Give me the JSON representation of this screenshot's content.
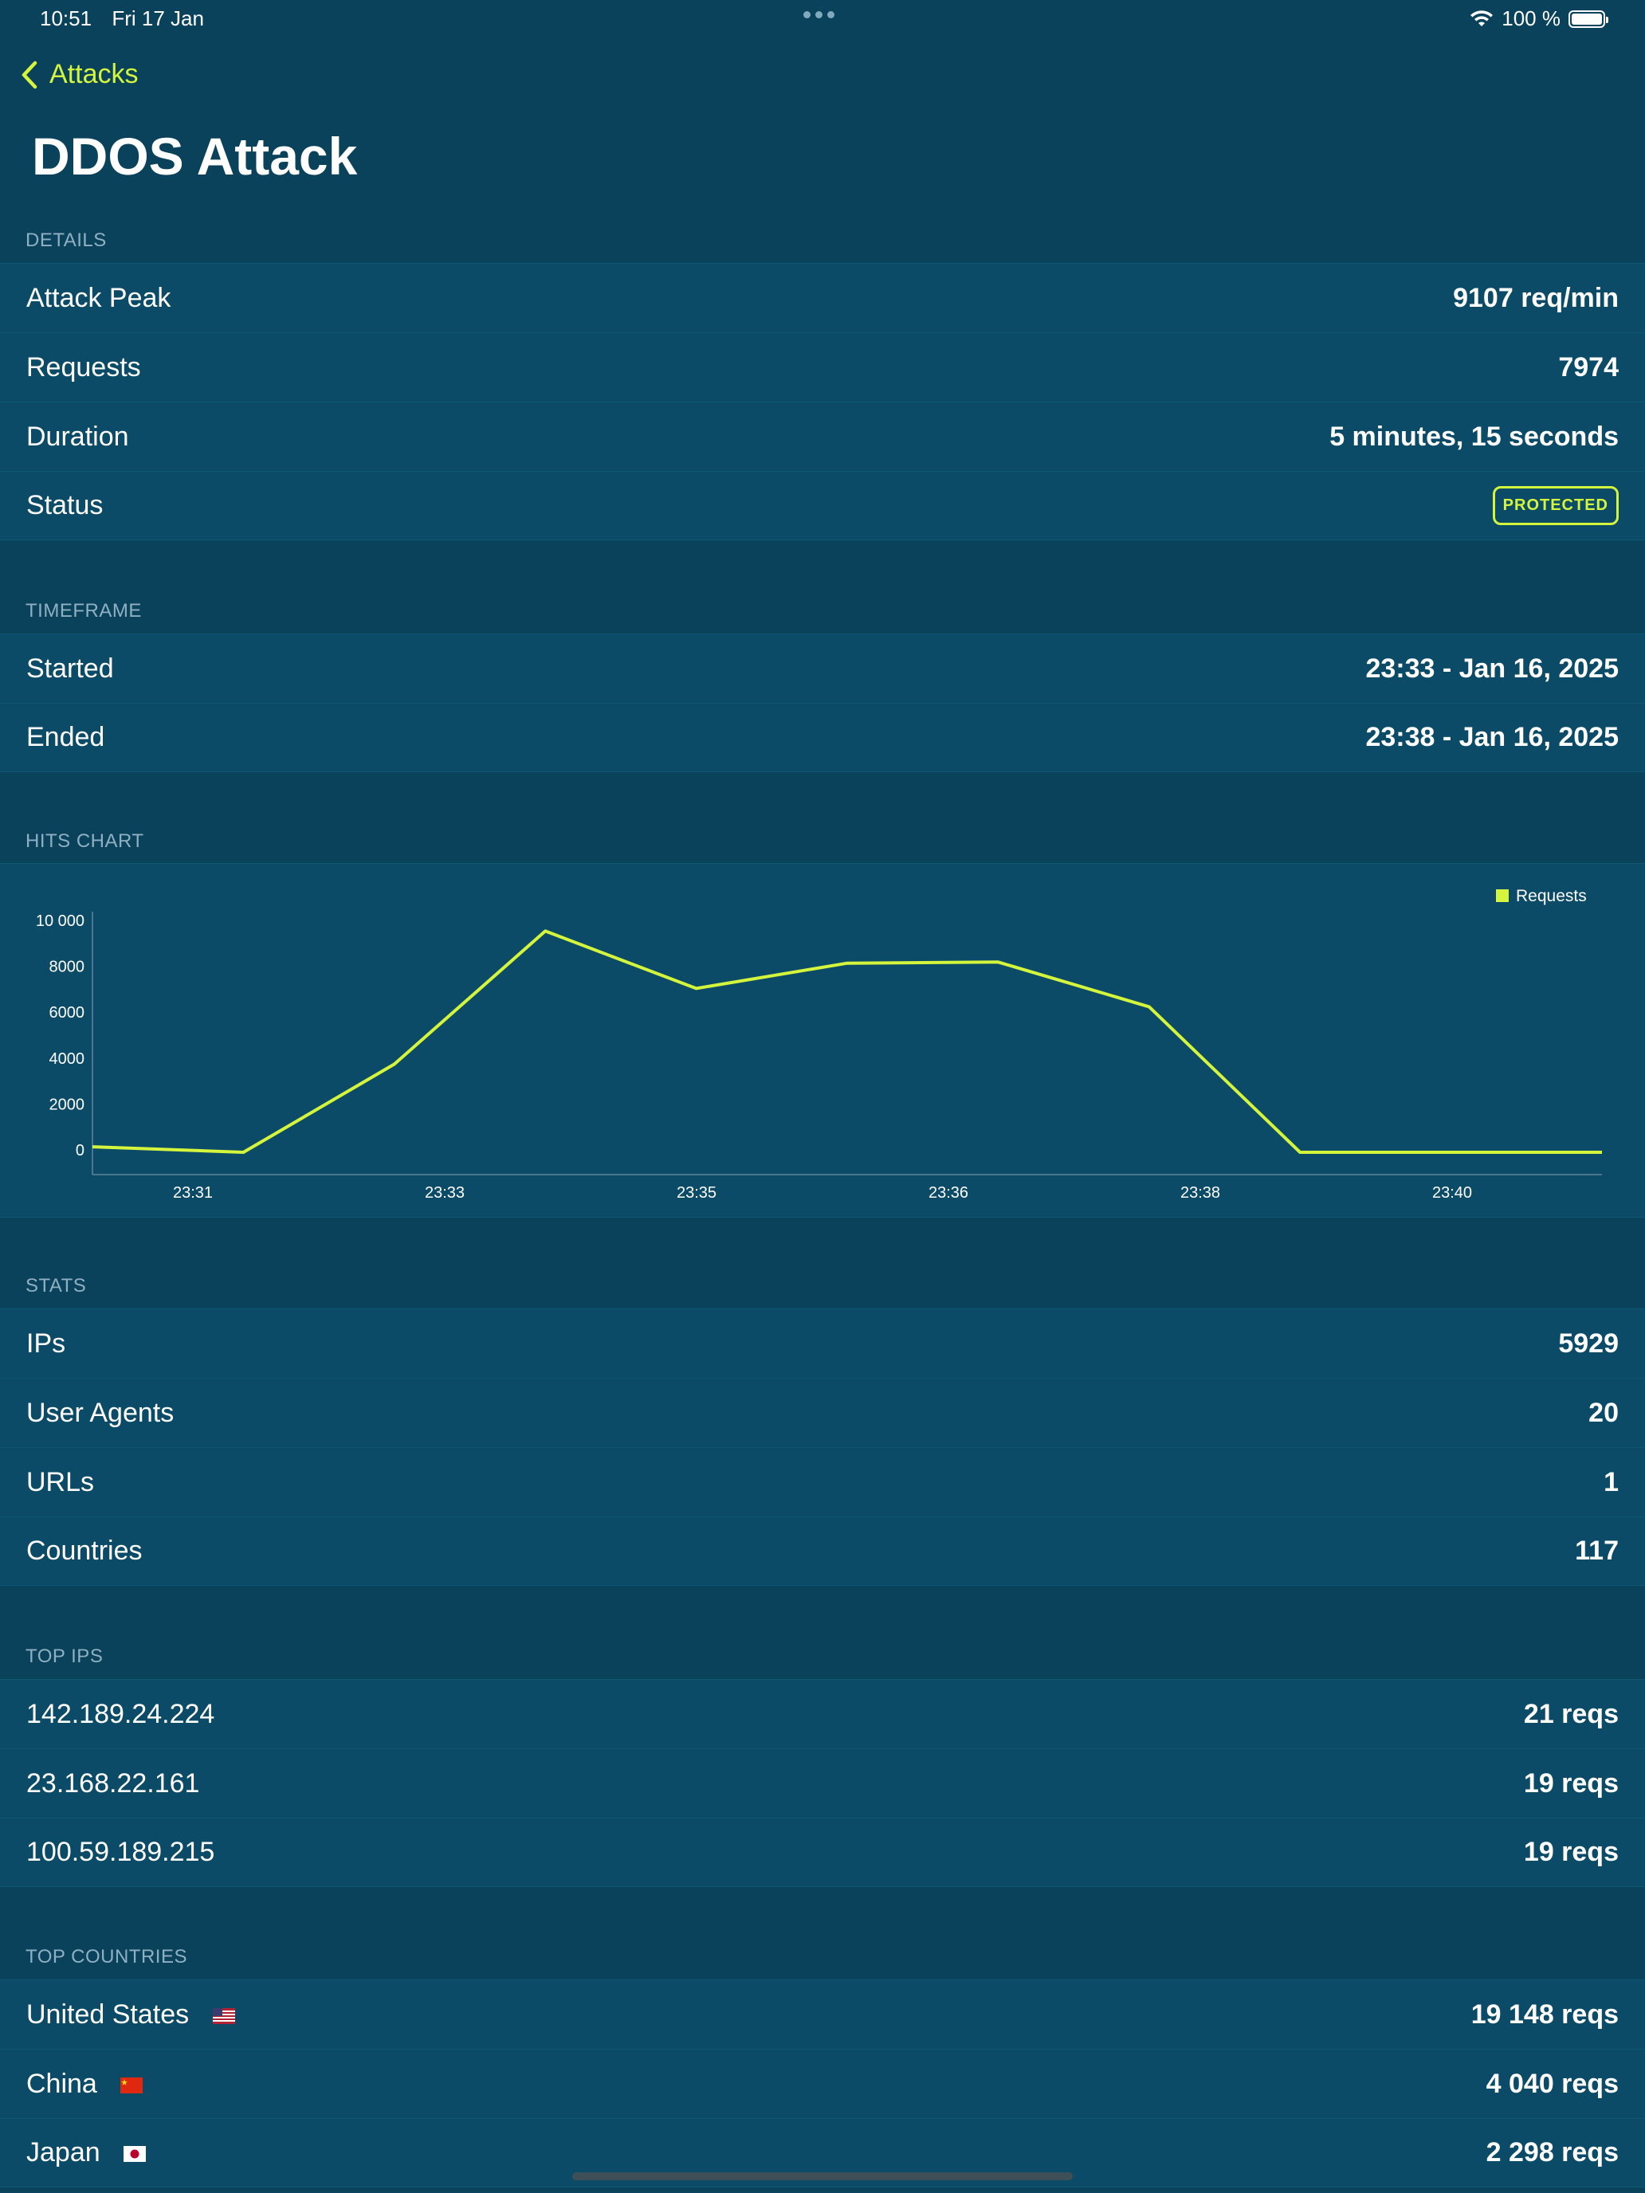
{
  "status_bar": {
    "time": "10:51",
    "date": "Fri 17 Jan",
    "battery": "100 %"
  },
  "nav": {
    "back_label": "Attacks"
  },
  "title": "DDOS Attack",
  "details": {
    "header": "DETAILS",
    "attack_peak_label": "Attack Peak",
    "attack_peak_value": "9107 req/min",
    "requests_label": "Requests",
    "requests_value": "7974",
    "duration_label": "Duration",
    "duration_value": "5 minutes, 15 seconds",
    "status_label": "Status",
    "status_value": "PROTECTED"
  },
  "timeframe": {
    "header": "TIMEFRAME",
    "started_label": "Started",
    "started_value": "23:33 -  Jan 16, 2025",
    "ended_label": "Ended",
    "ended_value": "23:38 -  Jan 16, 2025"
  },
  "hits_chart": {
    "header": "HITS CHART"
  },
  "chart_data": {
    "type": "line",
    "x": [
      "23:30.5",
      "23:31.5",
      "23:32.5",
      "23:33.5",
      "23:34.5",
      "23:35.5",
      "23:36.5",
      "23:37.5",
      "23:38.5",
      "23:39.5",
      "23:40.5"
    ],
    "x_tick_labels": [
      "23:31",
      "23:33",
      "23:35",
      "23:36",
      "23:38",
      "23:40"
    ],
    "series": [
      {
        "name": "Requests",
        "values": [
          100,
          0,
          3700,
          9500,
          7000,
          8100,
          8150,
          6200,
          0,
          0,
          0
        ]
      }
    ],
    "ylim": [
      0,
      10000
    ],
    "y_ticks": [
      "0",
      "2000",
      "4000",
      "6000",
      "8000",
      "10 000"
    ],
    "legend": "top-right",
    "grid": false,
    "color": "#d4f53c"
  },
  "stats": {
    "header": "STATS",
    "ips_label": "IPs",
    "ips_value": "5929",
    "ua_label": "User Agents",
    "ua_value": "20",
    "urls_label": "URLs",
    "urls_value": "1",
    "countries_label": "Countries",
    "countries_value": "117"
  },
  "top_ips": {
    "header": "TOP IPS",
    "items": [
      {
        "ip": "142.189.24.224",
        "reqs": "21 reqs"
      },
      {
        "ip": "23.168.22.161",
        "reqs": "19 reqs"
      },
      {
        "ip": "100.59.189.215",
        "reqs": "19 reqs"
      }
    ]
  },
  "top_countries": {
    "header": "TOP COUNTRIES",
    "items": [
      {
        "name": "United States",
        "flag": "us-flag",
        "reqs": "19 148 reqs"
      },
      {
        "name": "China",
        "flag": "cn-flag",
        "reqs": "4 040 reqs"
      },
      {
        "name": "Japan",
        "flag": "jp-flag",
        "reqs": "2 298 reqs"
      }
    ]
  },
  "colors": {
    "accent": "#d4f53c",
    "background": "#0a425c",
    "row": "#0b4b67"
  }
}
